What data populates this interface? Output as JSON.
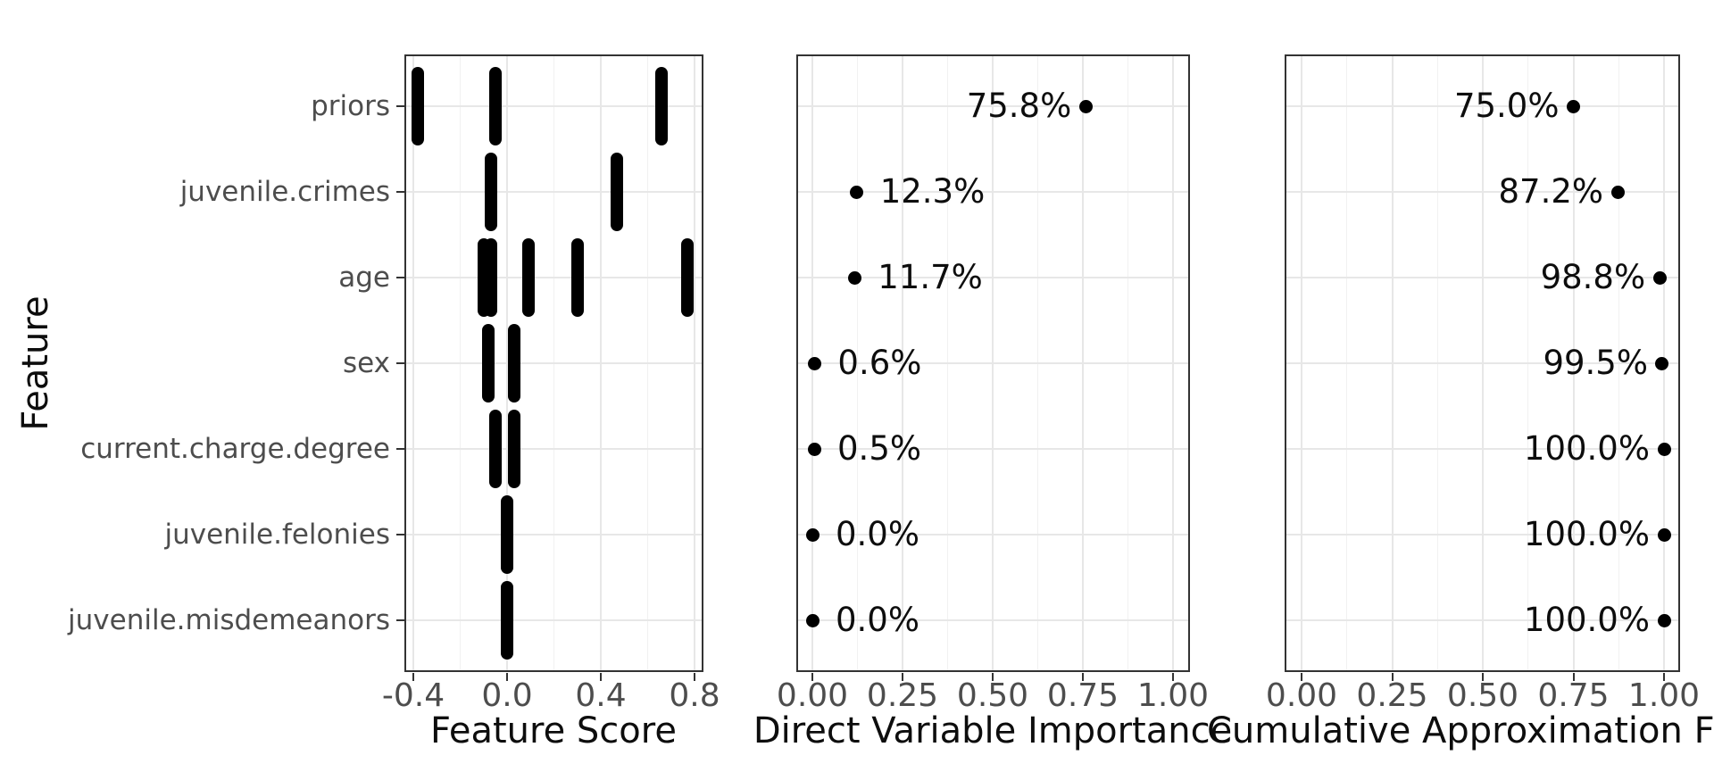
{
  "figure": {
    "background": "#ffffff",
    "panel_border_color": "#333333",
    "grid_major_color": "#e7e7e7",
    "grid_minor_color": "#f1f1f1",
    "tick_color": "#333333",
    "axis_text_color": "#4d4d4d",
    "title_color": "#0d0d0d",
    "point_color": "#000000",
    "bar_color": "#000000"
  },
  "y_axis": {
    "title": "Feature",
    "categories": [
      "priors",
      "juvenile.crimes",
      "age",
      "sex",
      "current.charge.degree",
      "juvenile.felonies",
      "juvenile.misdemeanors"
    ]
  },
  "chart_data": [
    {
      "type": "scatter",
      "subtype": "vertical-segment-strip",
      "xlabel": "Feature Score",
      "ylabel": "Feature",
      "xlim": [
        -0.44,
        0.84
      ],
      "xtick_values": [
        -0.4,
        0.0,
        0.4,
        0.8
      ],
      "xtick_labels": [
        "-0.4",
        "0.0",
        "0.4",
        "0.8"
      ],
      "minor_tick_values": [
        -0.2,
        0.2,
        0.6
      ],
      "grid": true,
      "categories": [
        "priors",
        "juvenile.crimes",
        "age",
        "sex",
        "current.charge.degree",
        "juvenile.felonies",
        "juvenile.misdemeanors"
      ],
      "series": [
        {
          "feature": "priors",
          "segment_scores": [
            -0.38,
            -0.05,
            0.66
          ]
        },
        {
          "feature": "juvenile.crimes",
          "segment_scores": [
            -0.07,
            0.47
          ]
        },
        {
          "feature": "age",
          "segment_scores": [
            -0.1,
            -0.07,
            0.09,
            0.3,
            0.77
          ]
        },
        {
          "feature": "sex",
          "segment_scores": [
            -0.08,
            0.03
          ]
        },
        {
          "feature": "current.charge.degree",
          "segment_scores": [
            -0.05,
            0.03
          ]
        },
        {
          "feature": "juvenile.felonies",
          "segment_scores": [
            0.0
          ]
        },
        {
          "feature": "juvenile.misdemeanors",
          "segment_scores": [
            0.0
          ]
        }
      ]
    },
    {
      "type": "scatter",
      "subtype": "labeled-dot-plot",
      "xlabel": "Direct Variable Importance",
      "ylabel": "Feature",
      "xlim": [
        -0.045,
        1.045
      ],
      "xtick_values": [
        0.0,
        0.25,
        0.5,
        0.75,
        1.0
      ],
      "xtick_labels": [
        "0.00",
        "0.25",
        "0.50",
        "0.75",
        "1.00"
      ],
      "minor_tick_values": [
        0.125,
        0.375,
        0.625,
        0.875
      ],
      "grid": true,
      "categories": [
        "priors",
        "juvenile.crimes",
        "age",
        "sex",
        "current.charge.degree",
        "juvenile.felonies",
        "juvenile.misdemeanors"
      ],
      "values": [
        0.758,
        0.123,
        0.117,
        0.006,
        0.005,
        0.0,
        0.0
      ],
      "point_labels": [
        "75.8%",
        "12.3%",
        "11.7%",
        "0.6%",
        "0.5%",
        "0.0%",
        "0.0%"
      ],
      "label_sides": [
        "left",
        "right",
        "right",
        "right",
        "right",
        "right",
        "right"
      ]
    },
    {
      "type": "scatter",
      "subtype": "labeled-dot-plot",
      "xlabel": "Cumulative Approximation F",
      "xlabel_clipped": true,
      "ylabel": "Feature",
      "xlim": [
        -0.045,
        1.045
      ],
      "xtick_values": [
        0.0,
        0.25,
        0.5,
        0.75,
        1.0
      ],
      "xtick_labels": [
        "0.00",
        "0.25",
        "0.50",
        "0.75",
        "1.00"
      ],
      "minor_tick_values": [
        0.125,
        0.375,
        0.625,
        0.875
      ],
      "grid": true,
      "categories": [
        "priors",
        "juvenile.crimes",
        "age",
        "sex",
        "current.charge.degree",
        "juvenile.felonies",
        "juvenile.misdemeanors"
      ],
      "values": [
        0.75,
        0.872,
        0.988,
        0.995,
        1.0,
        1.0,
        1.0
      ],
      "point_labels": [
        "75.0%",
        "87.2%",
        "98.8%",
        "99.5%",
        "100.0%",
        "100.0%",
        "100.0%"
      ],
      "label_sides": [
        "left",
        "left",
        "left",
        "left",
        "left",
        "left",
        "left"
      ]
    }
  ]
}
